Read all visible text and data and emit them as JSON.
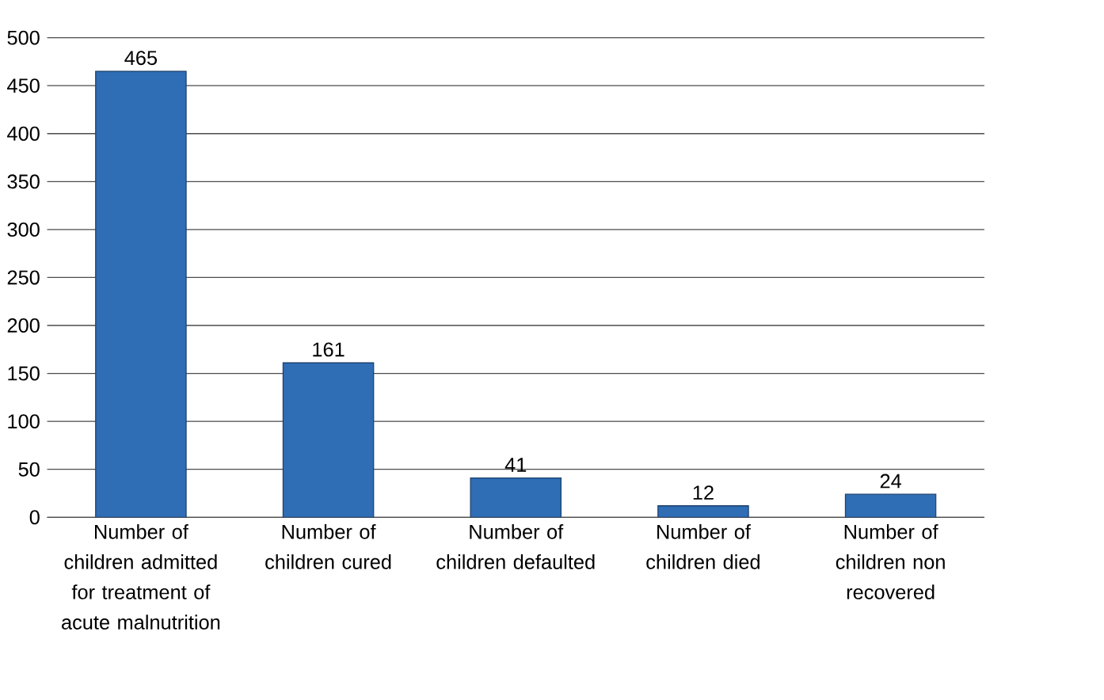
{
  "chart_data": {
    "type": "bar",
    "categories": [
      "Number of children admitted for treatment of acute malnutrition",
      "Number of children cured",
      "Number of children defaulted",
      "Number of children died",
      "Number of children non recovered"
    ],
    "values": [
      465,
      161,
      41,
      12,
      24
    ],
    "color": "#2f6db5",
    "ylim": [
      0,
      500
    ],
    "yticks": [
      0,
      50,
      100,
      150,
      200,
      250,
      300,
      350,
      400,
      450,
      500
    ],
    "grid": "y",
    "data_labels": true
  }
}
